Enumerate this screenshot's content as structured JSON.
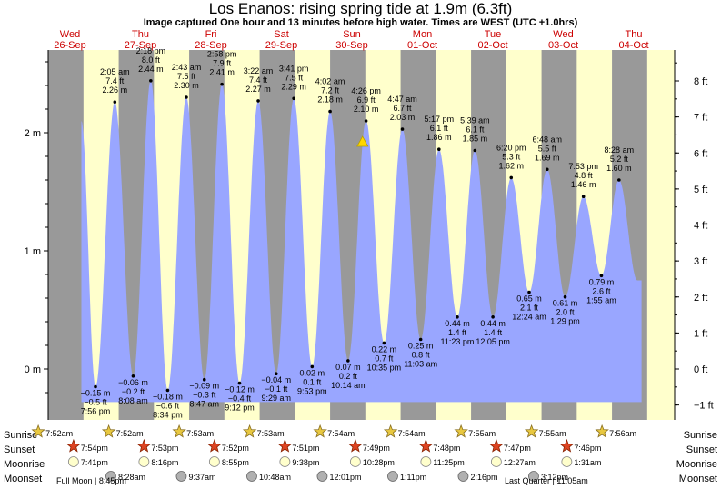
{
  "title": "Los Enanos: rising  spring tide at 1.9m (6.3ft)",
  "subtitle": "Image captured One hour and 13 minutes before high water. Times are WEST (UTC +1.0hrs)",
  "colors": {
    "night": "#999999",
    "day": "#ffffcc",
    "water": "#99a6ff",
    "day_header": "#cc0000",
    "background": "#ffffff"
  },
  "chart_data": {
    "type": "area",
    "title": "Los Enanos: rising  spring tide at 1.9m (6.3ft)",
    "days": [
      {
        "dow": "Wed",
        "date": "26-Sep"
      },
      {
        "dow": "Thu",
        "date": "27-Sep"
      },
      {
        "dow": "Fri",
        "date": "28-Sep"
      },
      {
        "dow": "Sat",
        "date": "29-Sep"
      },
      {
        "dow": "Sun",
        "date": "30-Sep"
      },
      {
        "dow": "Mon",
        "date": "01-Oct"
      },
      {
        "dow": "Tue",
        "date": "02-Oct"
      },
      {
        "dow": "Wed",
        "date": "03-Oct"
      },
      {
        "dow": "Thu",
        "date": "04-Oct"
      }
    ],
    "left_axis": {
      "unit": "m",
      "ticks": [
        "0 m",
        "1 m",
        "2 m"
      ],
      "values": [
        0,
        1,
        2
      ]
    },
    "right_axis": {
      "unit": "ft",
      "ticks": [
        "−1 ft",
        "0 ft",
        "1 ft",
        "2 ft",
        "3 ft",
        "4 ft",
        "5 ft",
        "6 ft",
        "7 ft",
        "8 ft"
      ],
      "values": [
        -1,
        0,
        1,
        2,
        3,
        4,
        5,
        6,
        7,
        8
      ]
    },
    "ylim_m": [
      -0.4,
      2.73
    ],
    "extremes": [
      {
        "type": "low",
        "day": 0.0,
        "m": -0.15,
        "lines": [
          "−0.15 m",
          "−0.5 ft",
          "7:56 pm"
        ]
      },
      {
        "type": "high",
        "day": 0.275,
        "m": 2.26,
        "lines": [
          "2:05 am",
          "7.4 ft",
          "2.26 m"
        ]
      },
      {
        "type": "low",
        "day": 0.535,
        "m": -0.06,
        "lines": [
          "−0.06 m",
          "−0.2 ft",
          "8:08 am"
        ]
      },
      {
        "type": "high",
        "day": 0.785,
        "m": 2.44,
        "lines": [
          "2:18 pm",
          "8.0 ft",
          "2.44 m"
        ]
      },
      {
        "type": "low",
        "day": 1.025,
        "m": -0.18,
        "lines": [
          "−0.18 m",
          "−0.6 ft",
          "8:34 pm"
        ]
      },
      {
        "type": "high",
        "day": 1.29,
        "m": 2.3,
        "lines": [
          "2:43 am",
          "7.5 ft",
          "2.30 m"
        ]
      },
      {
        "type": "low",
        "day": 1.545,
        "m": -0.09,
        "lines": [
          "−0.09 m",
          "−0.3 ft",
          "8:47 am"
        ]
      },
      {
        "type": "high",
        "day": 1.795,
        "m": 2.41,
        "lines": [
          "2:58 pm",
          "7.9 ft",
          "2.41 m"
        ]
      },
      {
        "type": "low",
        "day": 2.045,
        "m": -0.12,
        "lines": [
          "−0.12 m",
          "−0.4 ft",
          "9:12 pm"
        ]
      },
      {
        "type": "high",
        "day": 2.31,
        "m": 2.27,
        "lines": [
          "3:22 am",
          "7.4 ft",
          "2.27 m"
        ]
      },
      {
        "type": "low",
        "day": 2.565,
        "m": -0.04,
        "lines": [
          "−0.04 m",
          "−0.1 ft",
          "9:29 am"
        ]
      },
      {
        "type": "high",
        "day": 2.815,
        "m": 2.29,
        "lines": [
          "3:41 pm",
          "7.5 ft",
          "2.29 m"
        ]
      },
      {
        "type": "low",
        "day": 3.075,
        "m": 0.02,
        "lines": [
          "0.02 m",
          "0.1 ft",
          "9:53 pm"
        ]
      },
      {
        "type": "high",
        "day": 3.33,
        "m": 2.18,
        "lines": [
          "4:02 am",
          "7.2 ft",
          "2.18 m"
        ]
      },
      {
        "type": "low",
        "day": 3.585,
        "m": 0.07,
        "lines": [
          "0.07 m",
          "0.2 ft",
          "10:14 am"
        ]
      },
      {
        "type": "high",
        "day": 3.84,
        "m": 2.1,
        "lines": [
          "4:26 pm",
          "6.9 ft",
          "2.10 m"
        ]
      },
      {
        "type": "low",
        "day": 4.095,
        "m": 0.22,
        "lines": [
          "0.22 m",
          "0.7 ft",
          "10:35 pm"
        ]
      },
      {
        "type": "high",
        "day": 4.355,
        "m": 2.03,
        "lines": [
          "4:47 am",
          "6.7 ft",
          "2.03 m"
        ]
      },
      {
        "type": "low",
        "day": 4.615,
        "m": 0.25,
        "lines": [
          "0.25 m",
          "0.8 ft",
          "11:03 am"
        ]
      },
      {
        "type": "high",
        "day": 4.875,
        "m": 1.86,
        "lines": [
          "5:17 pm",
          "6.1 ft",
          "1.86 m"
        ]
      },
      {
        "type": "low",
        "day": 5.135,
        "m": 0.44,
        "lines": [
          "0.44 m",
          "1.4 ft",
          "11:23 pm"
        ]
      },
      {
        "type": "high",
        "day": 5.385,
        "m": 1.85,
        "lines": [
          "5:39 am",
          "6.1 ft",
          "1.85 m"
        ]
      },
      {
        "type": "low",
        "day": 5.64,
        "m": 0.44,
        "lines": [
          "0.44 m",
          "1.4 ft",
          "12:05 pm"
        ]
      },
      {
        "type": "high",
        "day": 5.9,
        "m": 1.62,
        "lines": [
          "6:20 pm",
          "5.3 ft",
          "1.62 m"
        ]
      },
      {
        "type": "low",
        "day": 6.155,
        "m": 0.65,
        "lines": [
          "0.65 m",
          "2.1 ft",
          "12:24 am"
        ]
      },
      {
        "type": "high",
        "day": 6.41,
        "m": 1.69,
        "lines": [
          "6:48 am",
          "5.5 ft",
          "1.69 m"
        ]
      },
      {
        "type": "low",
        "day": 6.665,
        "m": 0.61,
        "lines": [
          "0.61 m",
          "2.0 ft",
          "1:29 pm"
        ]
      },
      {
        "type": "high",
        "day": 6.925,
        "m": 1.46,
        "lines": [
          "7:53 pm",
          "4.8 ft",
          "1.46 m"
        ]
      },
      {
        "type": "low",
        "day": 7.18,
        "m": 0.79,
        "lines": [
          "0.79 m",
          "2.6 ft",
          "1:55 am"
        ]
      },
      {
        "type": "high",
        "day": 7.43,
        "m": 1.6,
        "lines": [
          "8:28 am",
          "5.2 ft",
          "1.60 m"
        ]
      }
    ],
    "current": {
      "day": 3.79,
      "m": 1.9
    }
  },
  "rows": {
    "sunrise": {
      "label": "Sunrise",
      "times": [
        "7:52am",
        "7:52am",
        "7:53am",
        "7:53am",
        "7:54am",
        "7:54am",
        "7:55am",
        "7:55am",
        "7:56am"
      ]
    },
    "sunset": {
      "label": "Sunset",
      "times": [
        "7:54pm",
        "7:53pm",
        "7:52pm",
        "7:51pm",
        "7:49pm",
        "7:48pm",
        "7:47pm",
        "7:46pm"
      ]
    },
    "moonrise": {
      "label": "Moonrise",
      "times": [
        "7:41pm",
        "8:16pm",
        "8:55pm",
        "9:38pm",
        "10:28pm",
        "11:25pm",
        "12:27am",
        "1:31am"
      ]
    },
    "moonset": {
      "label": "Moonset",
      "times": [
        "8:28am",
        "9:37am",
        "10:48am",
        "12:01pm",
        "1:11pm",
        "2:16pm",
        "3:12pm"
      ]
    }
  },
  "moon_phases": [
    "Full Moon | 8:45pm",
    "Last Quarter | 11:05am"
  ]
}
